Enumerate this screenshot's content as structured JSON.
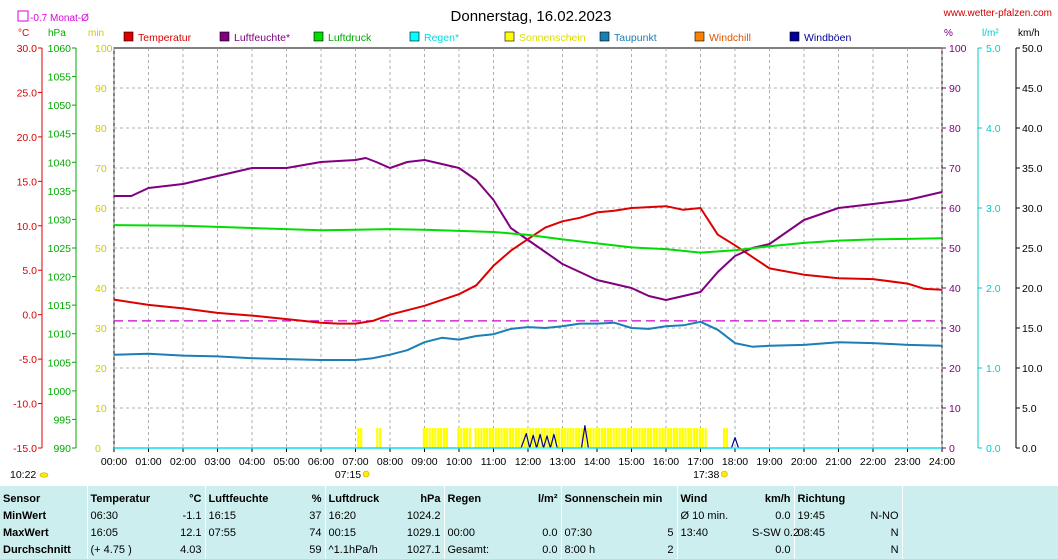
{
  "header": {
    "title": "Donnerstag, 16.02.2023",
    "site": "www.wetter-pfalzen.com",
    "monthly_avg": "-0.7 Monat-Ø",
    "sunrise": "07:15",
    "sunset": "17:38",
    "current_time": "10:22"
  },
  "units": {
    "temp": "°C",
    "press": "hPa",
    "min": "min",
    "pct": "%",
    "rain": "l/m²",
    "wind": "km/h"
  },
  "legend": [
    {
      "name": "Temperatur",
      "color": "#dd0000",
      "text_color": "#dd0000"
    },
    {
      "name": "Luftfeuchte*",
      "color": "#800080",
      "text_color": "#800080"
    },
    {
      "name": "Luftdruck",
      "color": "#00dd00",
      "text_color": "#00aa00"
    },
    {
      "name": "Regen*",
      "color": "#00ffff",
      "text_color": "#00dddd"
    },
    {
      "name": "Sonnenschein",
      "color": "#ffff00",
      "text_color": "#dddd00"
    },
    {
      "name": "Taupunkt",
      "color": "#1a7fb5",
      "text_color": "#1a7fb5"
    },
    {
      "name": "Windchill",
      "color": "#ff8000",
      "text_color": "#dd5500"
    },
    {
      "name": "Windböen",
      "color": "#000099",
      "text_color": "#000099"
    }
  ],
  "chart_data": {
    "type": "line",
    "grid": true,
    "x_ticks": [
      "00:00",
      "01:00",
      "02:00",
      "03:00",
      "04:00",
      "05:00",
      "06:00",
      "07:00",
      "08:00",
      "09:00",
      "10:00",
      "11:00",
      "12:00",
      "13:00",
      "14:00",
      "15:00",
      "16:00",
      "17:00",
      "18:00",
      "19:00",
      "20:00",
      "21:00",
      "22:00",
      "23:00",
      "24:00"
    ],
    "axes": {
      "temp": {
        "range": [
          -15,
          30
        ],
        "ticks": [
          "30.0",
          "25.0",
          "20.0",
          "15.0",
          "10.0",
          "5.0",
          "0.0",
          "-5.0",
          "-10.0",
          "-15.0"
        ]
      },
      "pressure": {
        "range": [
          990,
          1060
        ],
        "ticks": [
          "1060",
          "1055",
          "1050",
          "1045",
          "1040",
          "1035",
          "1030",
          "1025",
          "1020",
          "1015",
          "1010",
          "1005",
          "1000",
          "995",
          "990"
        ]
      },
      "sun_minutes": {
        "range": [
          0,
          100
        ],
        "ticks": [
          "100",
          "90",
          "80",
          "70",
          "60",
          "50",
          "40",
          "30",
          "20",
          "10",
          "0"
        ]
      },
      "humidity": {
        "range": [
          0,
          100
        ],
        "ticks": [
          "100",
          "90",
          "80",
          "70",
          "60",
          "50",
          "40",
          "30",
          "20",
          "10",
          "0"
        ]
      },
      "rain": {
        "range": [
          0,
          5
        ],
        "ticks": [
          "5.0",
          "4.0",
          "3.0",
          "2.0",
          "1.0",
          "0.0"
        ]
      },
      "wind": {
        "range": [
          0,
          50
        ],
        "ticks": [
          "50.0",
          "45.0",
          "40.0",
          "35.0",
          "30.0",
          "25.0",
          "20.0",
          "15.0",
          "10.0",
          "5.0",
          "0.0"
        ]
      }
    },
    "monthly_avg_temp": -0.7,
    "series": [
      {
        "name": "Temperatur",
        "axis": "temp",
        "x": [
          0,
          1,
          2,
          3,
          4,
          5,
          6,
          6.5,
          7,
          7.5,
          8,
          9,
          10,
          10.5,
          11,
          11.5,
          12,
          12.5,
          13,
          13.5,
          14,
          14.5,
          15,
          15.5,
          16,
          16.5,
          17,
          17.5,
          18,
          18.5,
          19,
          20,
          21,
          22,
          23,
          23.5,
          24
        ],
        "y": [
          1.7,
          1.1,
          0.7,
          0.2,
          -0.1,
          -0.5,
          -0.9,
          -1.0,
          -1.0,
          -0.7,
          0.0,
          1.0,
          2.3,
          3.3,
          5.5,
          7.2,
          8.5,
          9.8,
          10.5,
          10.9,
          11.5,
          11.7,
          12.0,
          12.1,
          12.2,
          11.8,
          12.0,
          9.0,
          7.8,
          6.5,
          5.2,
          4.5,
          4.1,
          4.0,
          3.5,
          2.9,
          2.8
        ]
      },
      {
        "name": "Luftfeuchte*",
        "axis": "humidity",
        "x": [
          0,
          0.5,
          1,
          2,
          3,
          4,
          5,
          6,
          7,
          7.3,
          7.6,
          8,
          8.5,
          9,
          9.5,
          10,
          10.5,
          11,
          11.5,
          12,
          12.5,
          13,
          13.5,
          14,
          14.5,
          15,
          15.5,
          16,
          16.5,
          17,
          17.5,
          18,
          18.5,
          19,
          20,
          21,
          22,
          23,
          24
        ],
        "y": [
          63,
          63,
          65,
          66,
          68,
          70,
          70,
          71.5,
          72,
          72.5,
          71.5,
          70,
          71.5,
          72,
          71,
          70,
          67,
          62,
          55,
          52,
          49,
          46,
          44,
          42,
          41,
          40,
          38,
          37,
          38,
          39,
          44,
          48,
          50,
          51,
          57,
          60,
          61,
          62,
          64
        ]
      },
      {
        "name": "Luftdruck",
        "axis": "pressure",
        "x": [
          0,
          2,
          4,
          6,
          7,
          8,
          9,
          10,
          11,
          12,
          13,
          14,
          15,
          16,
          17,
          18,
          19,
          20,
          21,
          22,
          23,
          24
        ],
        "y": [
          1029.0,
          1028.9,
          1028.5,
          1028.1,
          1028.2,
          1028.3,
          1028.2,
          1028.0,
          1027.8,
          1027.3,
          1026.5,
          1025.8,
          1025.1,
          1024.8,
          1024.2,
          1024.6,
          1025.3,
          1025.9,
          1026.3,
          1026.5,
          1026.6,
          1026.7
        ]
      },
      {
        "name": "Taupunkt",
        "axis": "temp",
        "x": [
          0,
          1,
          2,
          3,
          4,
          5,
          6,
          7,
          7.5,
          8,
          8.5,
          9,
          9.5,
          10,
          10.5,
          11,
          11.5,
          12,
          12.5,
          13,
          13.5,
          14,
          14.5,
          15,
          15.5,
          16,
          16.5,
          17,
          17.5,
          18,
          18.5,
          19,
          20,
          21,
          22,
          23,
          24
        ],
        "y": [
          -4.5,
          -4.4,
          -4.6,
          -4.7,
          -4.9,
          -5.0,
          -5.1,
          -5.1,
          -4.9,
          -4.5,
          -4.0,
          -3.1,
          -2.6,
          -2.8,
          -2.4,
          -2.2,
          -1.6,
          -1.4,
          -1.5,
          -1.3,
          -1.0,
          -1.0,
          -0.9,
          -1.5,
          -1.6,
          -1.3,
          -1.2,
          -0.8,
          -1.7,
          -3.2,
          -3.6,
          -3.5,
          -3.4,
          -3.1,
          -3.2,
          -3.4,
          -3.5
        ]
      },
      {
        "name": "Windböen",
        "axis": "wind",
        "x": [
          0,
          11.8,
          11.95,
          12.05,
          12.15,
          12.25,
          12.35,
          12.45,
          12.55,
          12.65,
          12.75,
          12.85,
          13.0,
          13.55,
          13.65,
          13.75,
          13.85,
          17.9,
          18.0,
          18.1,
          18.2,
          24
        ],
        "y": [
          0,
          0,
          1.8,
          0,
          1.6,
          0,
          1.7,
          0,
          1.5,
          0,
          1.7,
          0,
          0,
          0,
          2.8,
          0,
          0,
          0,
          1.3,
          0,
          0,
          0
        ]
      },
      {
        "name": "Regen*",
        "axis": "rain",
        "x": [
          0,
          24
        ],
        "y": [
          0,
          0
        ]
      }
    ],
    "sunshine": {
      "name": "Sonnenschein",
      "axis": "sun_minutes",
      "intervals": [
        [
          7.05,
          7.2
        ],
        [
          7.6,
          7.7
        ],
        [
          8.95,
          9.65
        ],
        [
          9.95,
          10.3
        ],
        [
          10.45,
          17.15
        ],
        [
          17.65,
          17.75
        ]
      ],
      "value": 5
    }
  },
  "stats": {
    "headers": {
      "sensor": "Sensor",
      "temp": "Temperatur",
      "temp_unit": "°C",
      "hum": "Luftfeuchte",
      "hum_unit": "%",
      "press": "Luftdruck",
      "press_unit": "hPa",
      "rain": "Regen",
      "rain_unit": "l/m²",
      "sun": "Sonnenschein min",
      "wind": "Wind",
      "wind_unit": "km/h",
      "dir": "Richtung"
    },
    "rows": [
      {
        "label": "MinWert",
        "temp_t": "06:30",
        "temp_v": "-1.1",
        "hum_t": "16:15",
        "hum_v": "37",
        "press_t": "16:20",
        "press_v": "1024.2",
        "rain_t": "",
        "rain_v": "",
        "sun_t": "",
        "sun_v": "",
        "wind_t": "Ø 10 min.",
        "wind_v": "0.0",
        "dir_t": "19:45",
        "dir_v": "N-NO"
      },
      {
        "label": "MaxWert",
        "temp_t": "16:05",
        "temp_v": "12.1",
        "hum_t": "07:55",
        "hum_v": "74",
        "press_t": "00:15",
        "press_v": "1029.1",
        "rain_t": "00:00",
        "rain_v": "0.0",
        "sun_t": "07:30",
        "sun_v": "5",
        "wind_t": "13:40",
        "wind_v": "S-SW 0.2",
        "dir_t": "08:45",
        "dir_v": "N"
      },
      {
        "label": "Durchschnitt",
        "temp_t": "(+ 4.75 )",
        "temp_v": "4.03",
        "hum_t": "",
        "hum_v": "59",
        "press_t": "^1.1hPa/h",
        "press_v": "1027.1",
        "rain_t": "Gesamt:",
        "rain_v": "0.0",
        "sun_t": "8:00 h",
        "sun_v": "2",
        "wind_t": "",
        "wind_v": "0.0",
        "dir_t": "",
        "dir_v": "N"
      }
    ]
  }
}
